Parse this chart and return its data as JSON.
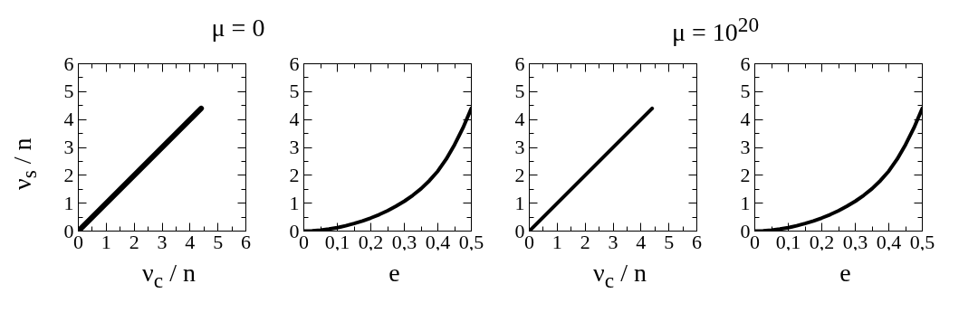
{
  "chart_data": [
    {
      "type": "line",
      "title": "μ = 0",
      "xlabel": "ν$_{c}$ / n",
      "ylabel": "ν$_{s}$ / n",
      "series": [
        {
          "color": "#000000",
          "x": [
            0,
            4.4
          ],
          "values": [
            0,
            4.4
          ]
        }
      ],
      "xlim": [
        0,
        6
      ],
      "ylim": [
        0,
        6
      ],
      "xticks": [
        0,
        {
          "value": 0.5,
          "label": null
        },
        1,
        {
          "value": 1.5,
          "label": null
        },
        2,
        {
          "value": 2.5,
          "label": null
        },
        3,
        {
          "value": 3.5,
          "label": null
        },
        4,
        {
          "value": 4.5,
          "label": null
        },
        5,
        {
          "value": 5.5,
          "label": null
        },
        6
      ],
      "yticks": [
        0,
        {
          "value": 0.5,
          "label": null
        },
        1,
        {
          "value": 1.5,
          "label": null
        },
        2,
        {
          "value": 2.5,
          "label": null
        },
        3,
        {
          "value": 3.5,
          "label": null
        },
        4,
        {
          "value": 4.5,
          "label": null
        },
        5,
        {
          "value": 5.5,
          "label": null
        },
        6
      ],
      "grid": false
    },
    {
      "type": "line",
      "xlabel": "e",
      "series": [
        {
          "color": "#000000",
          "x": [
            0,
            0.025,
            0.05,
            0.075,
            0.1,
            0.125,
            0.15,
            0.175,
            0.2,
            0.225,
            0.25,
            0.275,
            0.3,
            0.325,
            0.35,
            0.375,
            0.4,
            0.425,
            0.45,
            0.475,
            0.5
          ],
          "values": [
            0,
            0.01,
            0.03,
            0.07,
            0.12,
            0.19,
            0.27,
            0.36,
            0.47,
            0.59,
            0.73,
            0.89,
            1.07,
            1.28,
            1.52,
            1.81,
            2.15,
            2.58,
            3.1,
            3.7,
            4.4
          ]
        }
      ],
      "xlim": [
        0,
        0.5
      ],
      "ylim": [
        0,
        6
      ],
      "xticks": [
        0,
        {
          "value": 0.05,
          "label": null
        },
        {
          "value": 0.1,
          "label": "0,1"
        },
        {
          "value": 0.15,
          "label": null
        },
        {
          "value": 0.2,
          "label": "0,2"
        },
        {
          "value": 0.25,
          "label": null
        },
        {
          "value": 0.3,
          "label": "0,3"
        },
        {
          "value": 0.35,
          "label": null
        },
        {
          "value": 0.4,
          "label": "0,4"
        },
        {
          "value": 0.45,
          "label": null
        },
        {
          "value": 0.5,
          "label": "0,5"
        }
      ],
      "yticks": [
        0,
        {
          "value": 0.5,
          "label": null
        },
        1,
        {
          "value": 1.5,
          "label": null
        },
        2,
        {
          "value": 2.5,
          "label": null
        },
        3,
        {
          "value": 3.5,
          "label": null
        },
        4,
        {
          "value": 4.5,
          "label": null
        },
        5,
        {
          "value": 5.5,
          "label": null
        },
        6
      ],
      "grid": false
    },
    {
      "type": "line",
      "title": "μ = 10$^{20}$",
      "xlabel": "ν$_{c}$ / n",
      "series": [
        {
          "color": "#000000",
          "x": [
            0,
            4.4
          ],
          "values": [
            0,
            4.4
          ]
        }
      ],
      "xlim": [
        0,
        6
      ],
      "ylim": [
        0,
        6
      ],
      "xticks": [
        0,
        {
          "value": 0.5,
          "label": null
        },
        1,
        {
          "value": 1.5,
          "label": null
        },
        2,
        {
          "value": 2.5,
          "label": null
        },
        3,
        {
          "value": 3.5,
          "label": null
        },
        4,
        {
          "value": 4.5,
          "label": null
        },
        5,
        {
          "value": 5.5,
          "label": null
        },
        6
      ],
      "yticks": [
        0,
        {
          "value": 0.5,
          "label": null
        },
        1,
        {
          "value": 1.5,
          "label": null
        },
        2,
        {
          "value": 2.5,
          "label": null
        },
        3,
        {
          "value": 3.5,
          "label": null
        },
        4,
        {
          "value": 4.5,
          "label": null
        },
        5,
        {
          "value": 5.5,
          "label": null
        },
        6
      ],
      "grid": false
    },
    {
      "type": "line",
      "xlabel": "e",
      "series": [
        {
          "color": "#000000",
          "x": [
            0,
            0.025,
            0.05,
            0.075,
            0.1,
            0.125,
            0.15,
            0.175,
            0.2,
            0.225,
            0.25,
            0.275,
            0.3,
            0.325,
            0.35,
            0.375,
            0.4,
            0.425,
            0.45,
            0.475,
            0.5
          ],
          "values": [
            0,
            0.01,
            0.03,
            0.07,
            0.12,
            0.19,
            0.27,
            0.36,
            0.47,
            0.59,
            0.73,
            0.89,
            1.07,
            1.28,
            1.52,
            1.81,
            2.15,
            2.58,
            3.1,
            3.7,
            4.4
          ]
        }
      ],
      "xlim": [
        0,
        0.5
      ],
      "ylim": [
        0,
        6
      ],
      "xticks": [
        0,
        {
          "value": 0.05,
          "label": null
        },
        {
          "value": 0.1,
          "label": "0,1"
        },
        {
          "value": 0.15,
          "label": null
        },
        {
          "value": 0.2,
          "label": "0,2"
        },
        {
          "value": 0.25,
          "label": null
        },
        {
          "value": 0.3,
          "label": "0,3"
        },
        {
          "value": 0.35,
          "label": null
        },
        {
          "value": 0.4,
          "label": "0,4"
        },
        {
          "value": 0.45,
          "label": null
        },
        {
          "value": 0.5,
          "label": "0,5"
        }
      ],
      "yticks": [
        0,
        {
          "value": 0.5,
          "label": null
        },
        1,
        {
          "value": 1.5,
          "label": null
        },
        2,
        {
          "value": 2.5,
          "label": null
        },
        3,
        {
          "value": 3.5,
          "label": null
        },
        4,
        {
          "value": 4.5,
          "label": null
        },
        5,
        {
          "value": 5.5,
          "label": null
        },
        6
      ],
      "grid": false
    }
  ]
}
